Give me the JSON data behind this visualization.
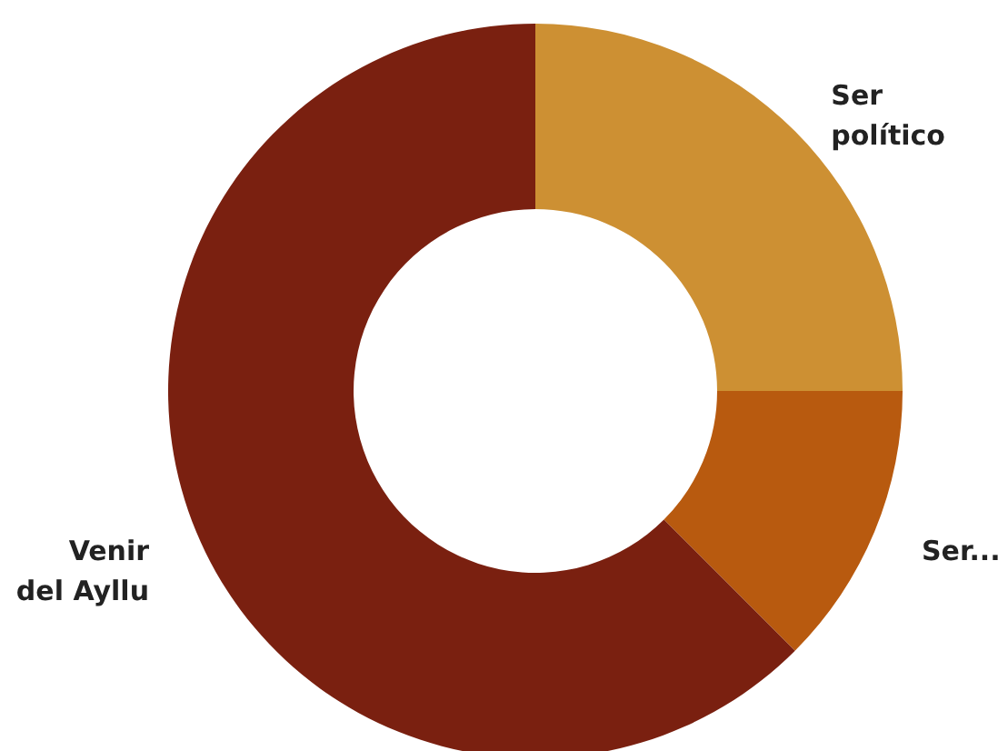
{
  "chart_data": {
    "type": "donut",
    "categories": [
      "Ser\npolítico",
      "Ser...",
      "Venir\ndel Ayllu"
    ],
    "values": [
      25,
      12.5,
      62.5
    ],
    "colors": [
      "#cd9033",
      "#b85a0f",
      "#7a2010"
    ]
  }
}
